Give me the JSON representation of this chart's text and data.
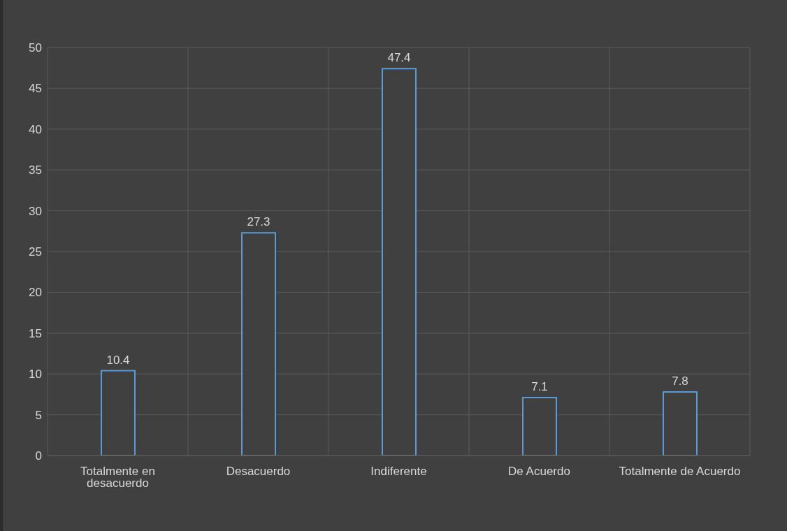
{
  "chart_data": {
    "type": "bar",
    "categories": [
      "Totalmente en desacuerdo",
      "Desacuerdo",
      "Indiferente",
      "De Acuerdo",
      "Totalmente de Acuerdo"
    ],
    "values": [
      10.4,
      27.3,
      47.4,
      7.1,
      7.8
    ],
    "color": "#5b9bd5",
    "data_labels": true,
    "ylim": [
      0,
      50
    ],
    "yticks": [
      0,
      5,
      10,
      15,
      20,
      25,
      30,
      35,
      40,
      45,
      50
    ],
    "grid": true,
    "legend": false
  }
}
